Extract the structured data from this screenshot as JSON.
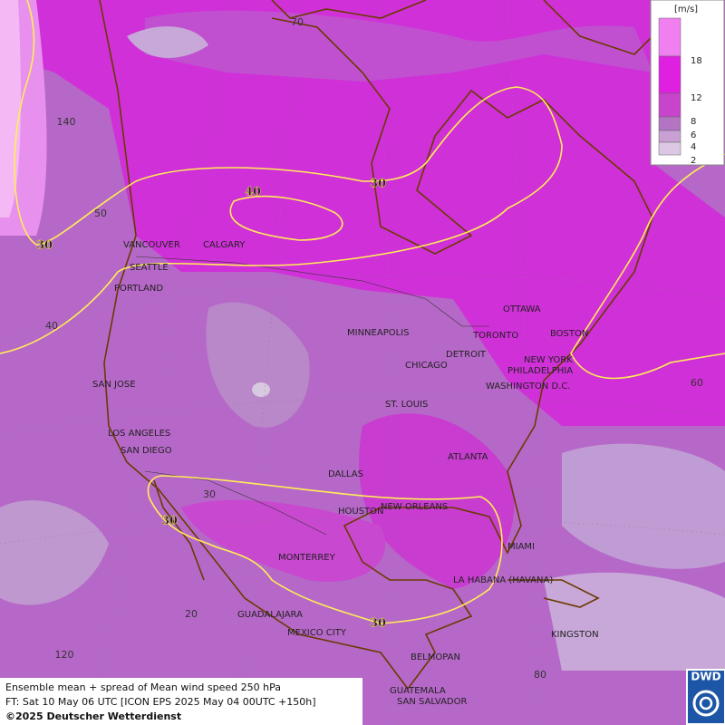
{
  "legend": {
    "unit": "[m/s]",
    "levels": [
      "18",
      "12",
      "8",
      "6",
      "4",
      "2"
    ]
  },
  "cities": [
    "VANCOUVER",
    "CALGARY",
    "SEATTLE",
    "PORTLAND",
    "MINNEAPOLIS",
    "OTTAWA",
    "TORONTO",
    "BOSTON",
    "DETROIT",
    "CHICAGO",
    "NEW YORK",
    "PHILADELPHIA",
    "WASHINGTON D.C.",
    "SAN JOSE",
    "ST. LOUIS",
    "LOS ANGELES",
    "SAN DIEGO",
    "ATLANTA",
    "DALLAS",
    "HOUSTON",
    "NEW ORLEANS",
    "MIAMI",
    "MONTERREY",
    "LA HABANA (HAVANA)",
    "GUADALAJARA",
    "MEXICO CITY",
    "KINGSTON",
    "BELMOPAN",
    "GUATEMALA",
    "SAN SALVADOR"
  ],
  "contour_labels": [
    "40",
    "30",
    "30",
    "30",
    "30"
  ],
  "grid_labels": [
    "70",
    "140",
    "50",
    "40",
    "60",
    "30",
    "20",
    "120",
    "80"
  ],
  "footer": {
    "line1": "Ensemble mean + spread of Mean wind speed 250 hPa",
    "line2": "FT: Sat 10 May 06 UTC [ICON EPS 2025 May 04 00UTC +150h]",
    "line3": "©2025 Deutscher Wetterdienst"
  },
  "logo": "DWD"
}
